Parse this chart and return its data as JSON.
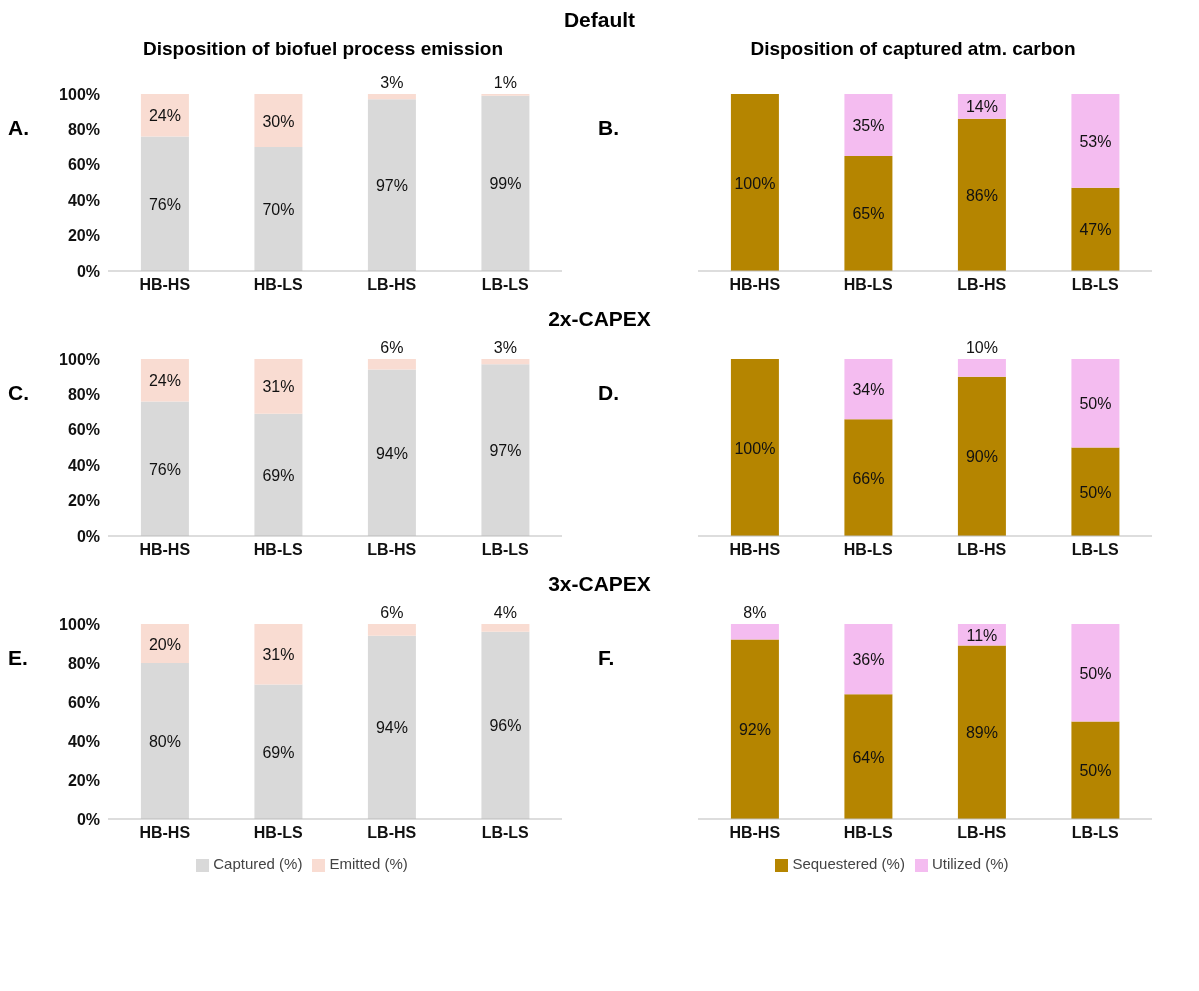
{
  "chart_data": [
    {
      "type": "bar",
      "title": "Default",
      "subtitle": "Disposition of biofuel process emission",
      "annotations": [
        "A."
      ],
      "categories": [
        "HB-HS",
        "HB-LS",
        "LB-HS",
        "LB-LS"
      ],
      "stacked": true,
      "ylim": [
        0,
        100
      ],
      "yticks": [
        {
          "value": 0,
          "label": "0%"
        },
        {
          "value": 20,
          "label": "20%"
        },
        {
          "value": 40,
          "label": "40%"
        },
        {
          "value": 60,
          "label": "60%"
        },
        {
          "value": 80,
          "label": "80%"
        },
        {
          "value": 100,
          "label": "100%"
        }
      ],
      "grid": false,
      "legend": false,
      "series": [
        {
          "color": "#d9d9d9",
          "values": [
            76,
            70,
            97,
            99
          ],
          "value_labels": [
            "76%",
            "70%",
            "97%",
            "99%"
          ]
        },
        {
          "color": "#f9dcd2",
          "values": [
            24,
            30,
            3,
            1
          ],
          "value_labels": [
            "24%",
            "30%",
            "3%",
            "1%"
          ]
        }
      ]
    },
    {
      "type": "bar",
      "subtitle": "Disposition of captured atm. carbon",
      "annotations": [
        "B."
      ],
      "categories": [
        "HB-HS",
        "HB-LS",
        "LB-HS",
        "LB-LS"
      ],
      "stacked": true,
      "ylim": [
        0,
        100
      ],
      "tick_labels": "x",
      "grid": false,
      "legend": false,
      "series": [
        {
          "color": "#b58500",
          "values": [
            100,
            65,
            86,
            47
          ],
          "value_labels": [
            "100%",
            "65%",
            "86%",
            "47%"
          ]
        },
        {
          "color": "#f4bcf0",
          "values": [
            null,
            35,
            14,
            53
          ],
          "value_labels": [
            null,
            "35%",
            "14%",
            "53%"
          ]
        }
      ]
    },
    {
      "type": "bar",
      "title": "2x-CAPEX",
      "annotations": [
        "C."
      ],
      "categories": [
        "HB-HS",
        "HB-LS",
        "LB-HS",
        "LB-LS"
      ],
      "stacked": true,
      "ylim": [
        0,
        100
      ],
      "yticks": [
        {
          "value": 0,
          "label": "0%"
        },
        {
          "value": 20,
          "label": "20%"
        },
        {
          "value": 40,
          "label": "40%"
        },
        {
          "value": 60,
          "label": "60%"
        },
        {
          "value": 80,
          "label": "80%"
        },
        {
          "value": 100,
          "label": "100%"
        }
      ],
      "grid": false,
      "legend": false,
      "series": [
        {
          "color": "#d9d9d9",
          "values": [
            76,
            69,
            94,
            97
          ],
          "value_labels": [
            "76%",
            "69%",
            "94%",
            "97%"
          ]
        },
        {
          "color": "#f9dcd2",
          "values": [
            24,
            31,
            6,
            3
          ],
          "value_labels": [
            "24%",
            "31%",
            "6%",
            "3%"
          ]
        }
      ]
    },
    {
      "type": "bar",
      "annotations": [
        "D."
      ],
      "categories": [
        "HB-HS",
        "HB-LS",
        "LB-HS",
        "LB-LS"
      ],
      "stacked": true,
      "ylim": [
        0,
        100
      ],
      "tick_labels": "x",
      "grid": false,
      "legend": false,
      "series": [
        {
          "color": "#b58500",
          "values": [
            100,
            66,
            90,
            50
          ],
          "value_labels": [
            "100%",
            "66%",
            "90%",
            "50%"
          ]
        },
        {
          "color": "#f4bcf0",
          "values": [
            null,
            34,
            10,
            50
          ],
          "value_labels": [
            null,
            "34%",
            "10%",
            "50%"
          ]
        }
      ]
    },
    {
      "type": "bar",
      "title": "3x-CAPEX",
      "annotations": [
        "E."
      ],
      "categories": [
        "HB-HS",
        "HB-LS",
        "LB-HS",
        "LB-LS"
      ],
      "stacked": true,
      "ylim": [
        0,
        100
      ],
      "yticks": [
        {
          "value": 0,
          "label": "0%"
        },
        {
          "value": 20,
          "label": "20%"
        },
        {
          "value": 40,
          "label": "40%"
        },
        {
          "value": 60,
          "label": "60%"
        },
        {
          "value": 80,
          "label": "80%"
        },
        {
          "value": 100,
          "label": "100%"
        }
      ],
      "grid": false,
      "legend": "bottom",
      "series": [
        {
          "name": "Captured (%)",
          "color": "#d9d9d9",
          "values": [
            80,
            69,
            94,
            96
          ],
          "value_labels": [
            "80%",
            "69%",
            "94%",
            "96%"
          ]
        },
        {
          "name": "Emitted (%)",
          "color": "#f9dcd2",
          "values": [
            20,
            31,
            6,
            4
          ],
          "value_labels": [
            "20%",
            "31%",
            "6%",
            "4%"
          ]
        }
      ]
    },
    {
      "type": "bar",
      "annotations": [
        "F."
      ],
      "categories": [
        "HB-HS",
        "HB-LS",
        "LB-HS",
        "LB-LS"
      ],
      "stacked": true,
      "ylim": [
        0,
        100
      ],
      "tick_labels": "x",
      "grid": false,
      "legend": "bottom",
      "series": [
        {
          "name": "Sequestered (%)",
          "color": "#b58500",
          "values": [
            92,
            64,
            89,
            50
          ],
          "value_labels": [
            "92%",
            "64%",
            "89%",
            "50%"
          ]
        },
        {
          "name": "Utilized (%)",
          "color": "#f4bcf0",
          "values": [
            8,
            36,
            11,
            50
          ],
          "value_labels": [
            "8%",
            "36%",
            "11%",
            "50%"
          ]
        }
      ]
    }
  ]
}
